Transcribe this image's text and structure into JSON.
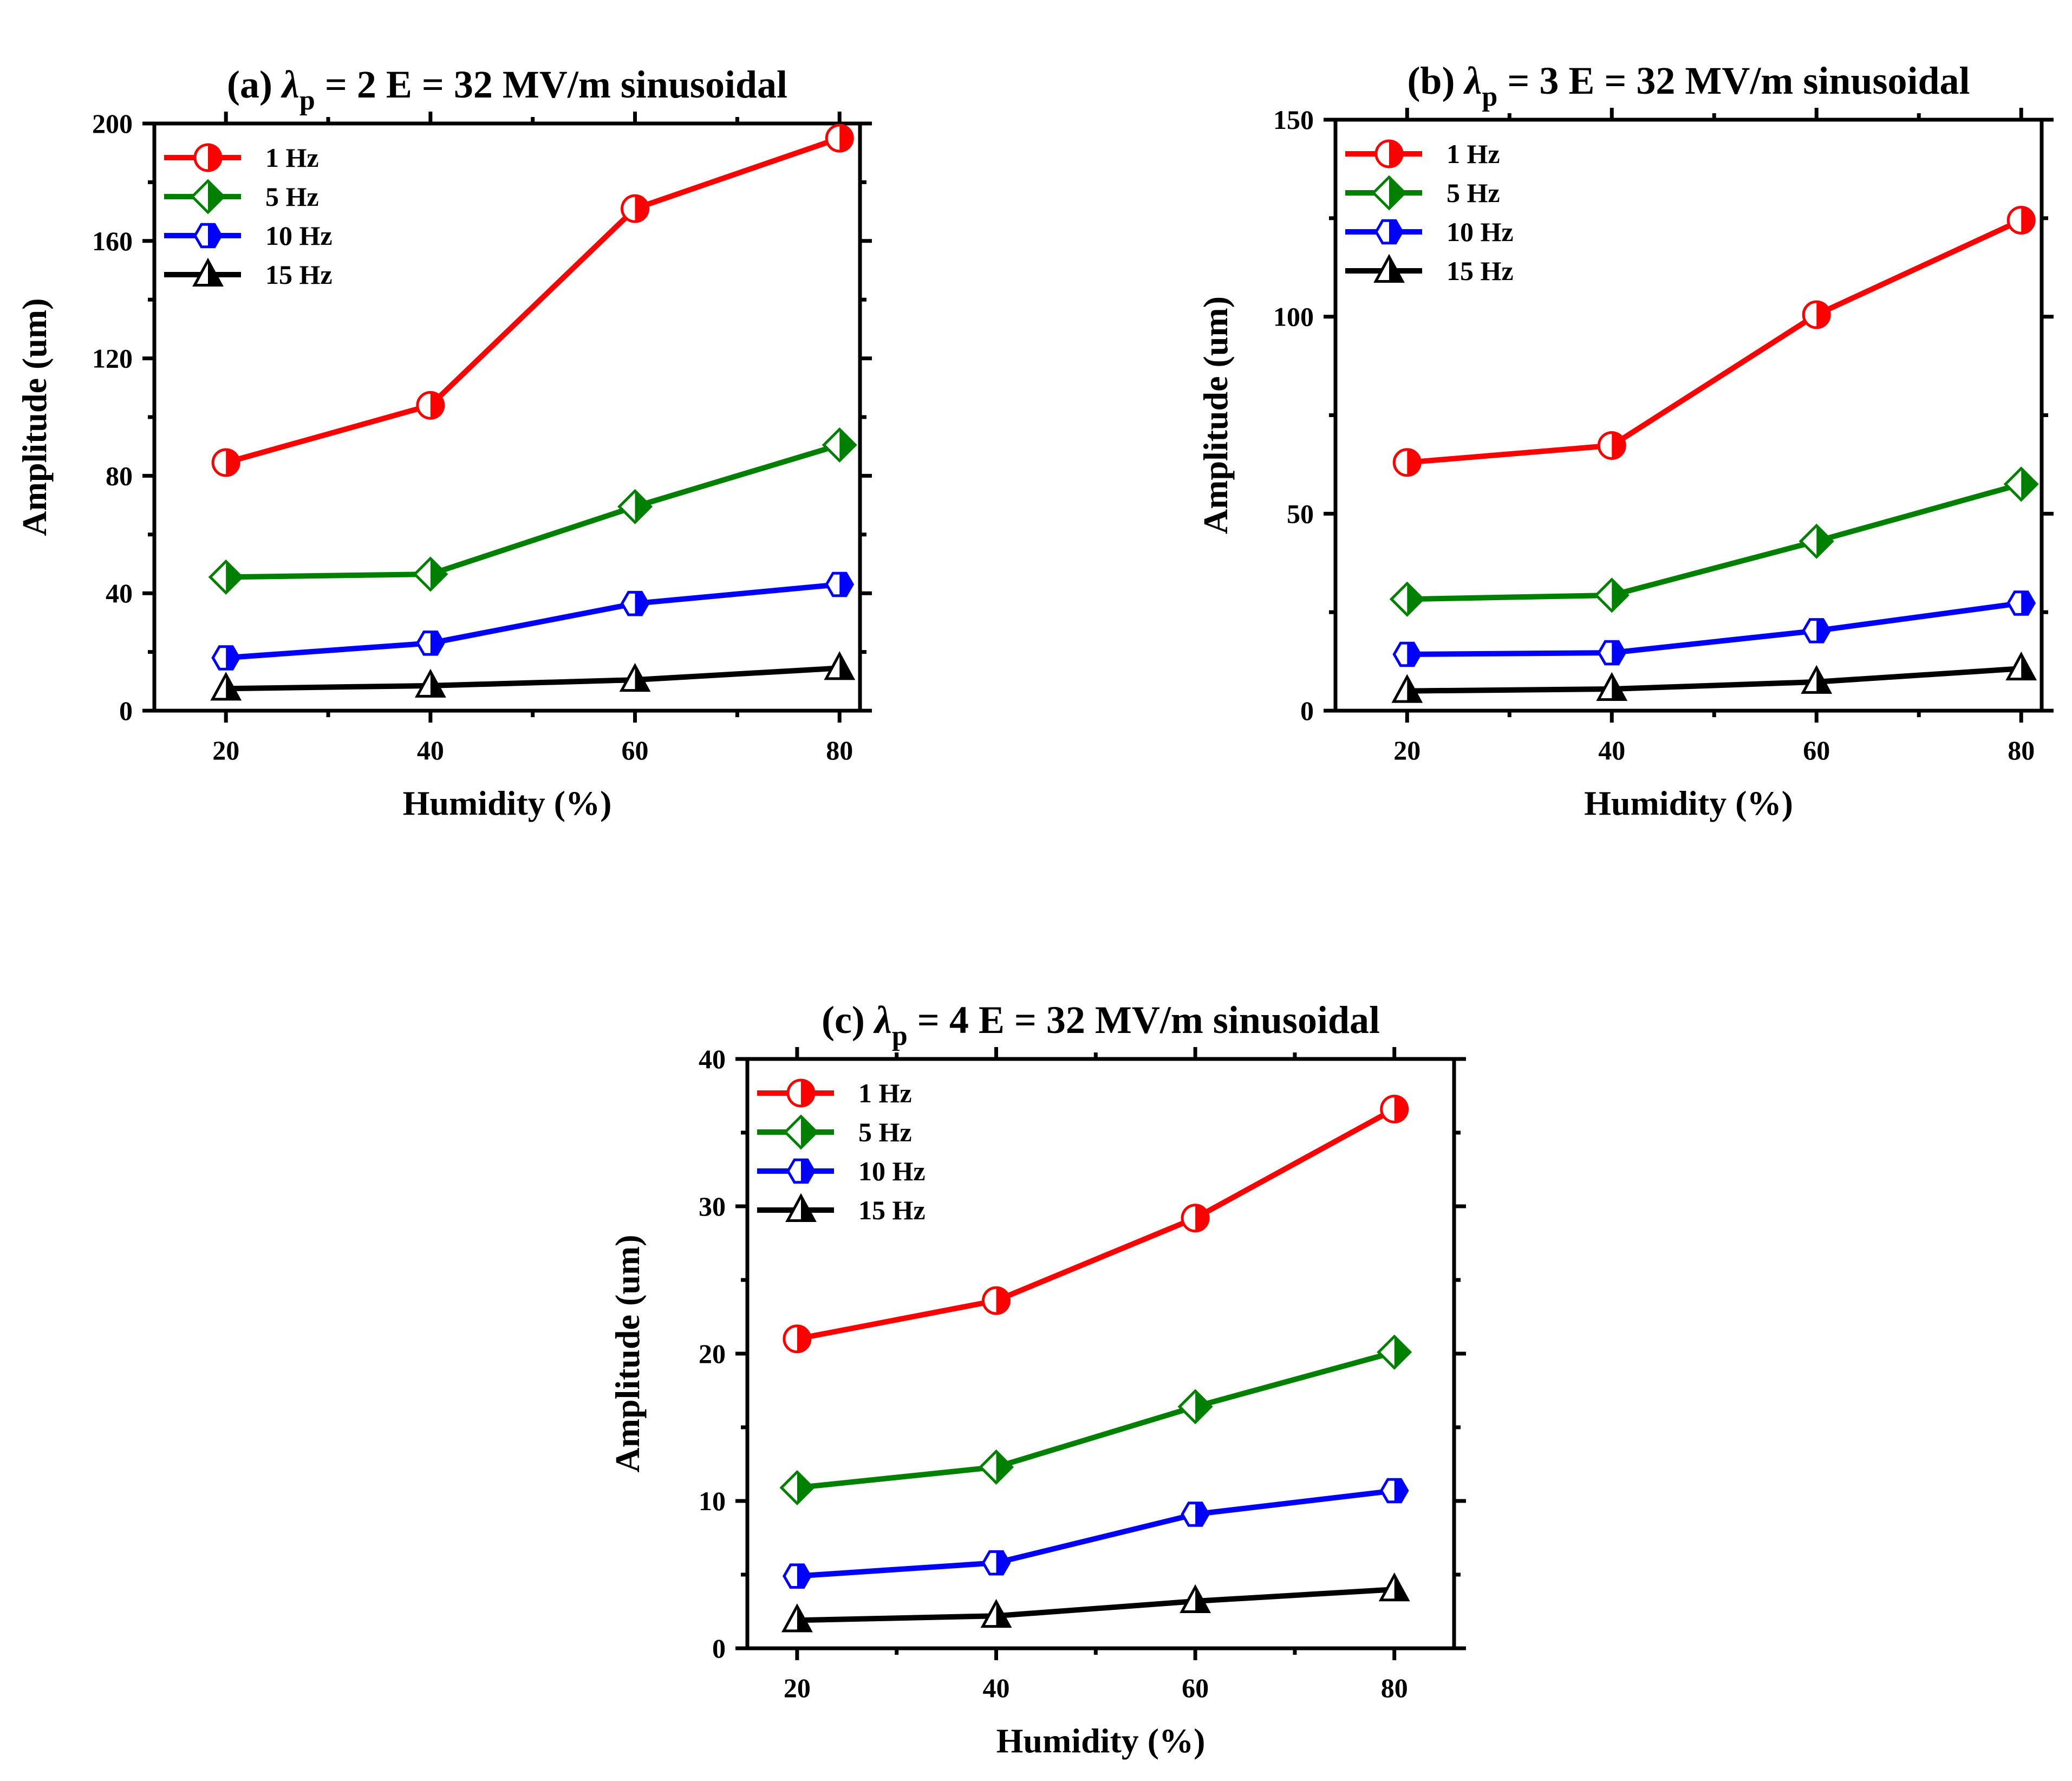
{
  "chart_data": [
    {
      "type": "line",
      "panel": "(a)",
      "title": {
        "prefix": "(a)",
        "lambda": "λ",
        "sub": "p",
        "rest": "= 2  E = 32 MV/m  sinusoidal"
      },
      "xlabel": "Humidity (%)",
      "ylabel": "Amplitude (um)",
      "x": [
        20,
        40,
        60,
        80
      ],
      "xlim": [
        13,
        82
      ],
      "ylim": [
        0,
        200
      ],
      "xticks": [
        20,
        40,
        60,
        80
      ],
      "yticks": [
        0,
        40,
        80,
        120,
        160,
        200
      ],
      "legend_position": "top-left",
      "series": [
        {
          "name": "1 Hz",
          "color": "#ff0000",
          "marker": "circle-half",
          "values": [
            84.5,
            104,
            171,
            195
          ]
        },
        {
          "name": "5 Hz",
          "color": "#008000",
          "marker": "diamond-half",
          "values": [
            45.5,
            46.5,
            69.5,
            90.5
          ]
        },
        {
          "name": "10 Hz",
          "color": "#0000ff",
          "marker": "hexagon-half",
          "values": [
            18,
            23,
            36.5,
            43
          ]
        },
        {
          "name": "15 Hz",
          "color": "#000000",
          "marker": "triangle-half",
          "values": [
            7.5,
            8.5,
            10.5,
            14.5
          ]
        }
      ]
    },
    {
      "type": "line",
      "panel": "(b)",
      "title": {
        "prefix": "(b)",
        "lambda": "λ",
        "sub": "p",
        "rest": "= 3  E = 32 MV/m  sinusoidal"
      },
      "xlabel": "Humidity (%)",
      "ylabel": "Amplitude (um)",
      "x": [
        20,
        40,
        60,
        80
      ],
      "xlim": [
        13,
        82
      ],
      "ylim": [
        0,
        150
      ],
      "xticks": [
        20,
        40,
        60,
        80
      ],
      "yticks": [
        0,
        50,
        100,
        150
      ],
      "legend_position": "top-left",
      "series": [
        {
          "name": "1 Hz",
          "color": "#ff0000",
          "marker": "circle-half",
          "values": [
            63,
            67.3,
            100.5,
            124.5
          ]
        },
        {
          "name": "5 Hz",
          "color": "#008000",
          "marker": "diamond-half",
          "values": [
            28.3,
            29.3,
            43,
            57.5
          ]
        },
        {
          "name": "10 Hz",
          "color": "#0000ff",
          "marker": "hexagon-half",
          "values": [
            14.3,
            14.7,
            20.3,
            27.3
          ]
        },
        {
          "name": "15 Hz",
          "color": "#000000",
          "marker": "triangle-half",
          "values": [
            5,
            5.5,
            7.3,
            10.7
          ]
        }
      ]
    },
    {
      "type": "line",
      "panel": "(c)",
      "title": {
        "prefix": "(c)",
        "lambda": "λ",
        "sub": "p",
        "rest": "= 4  E = 32 MV/m  sinusoidal"
      },
      "xlabel": "Humidity (%)",
      "ylabel": "Amplitude (um)",
      "x": [
        20,
        40,
        60,
        80
      ],
      "xlim": [
        15,
        86
      ],
      "ylim": [
        0,
        40
      ],
      "xticks": [
        20,
        40,
        60,
        80
      ],
      "yticks": [
        0,
        10,
        20,
        30,
        40
      ],
      "legend_position": "top-left",
      "series": [
        {
          "name": "1 Hz",
          "color": "#ff0000",
          "marker": "circle-half",
          "values": [
            21,
            23.6,
            29.2,
            36.6
          ]
        },
        {
          "name": "5 Hz",
          "color": "#008000",
          "marker": "diamond-half",
          "values": [
            10.9,
            12.3,
            16.4,
            20.1
          ]
        },
        {
          "name": "10 Hz",
          "color": "#0000ff",
          "marker": "hexagon-half",
          "values": [
            4.9,
            5.8,
            9.1,
            10.7
          ]
        },
        {
          "name": "15 Hz",
          "color": "#000000",
          "marker": "triangle-half",
          "values": [
            1.9,
            2.2,
            3.2,
            4
          ]
        }
      ]
    }
  ]
}
